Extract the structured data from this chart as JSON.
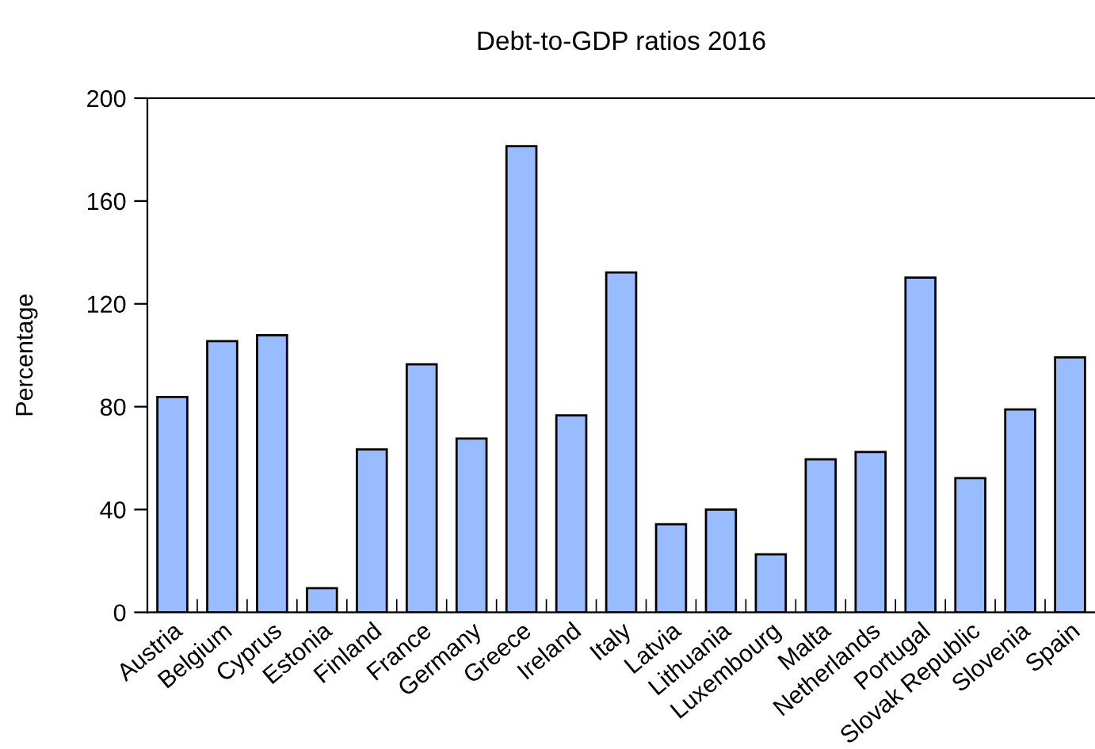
{
  "chart_data": {
    "type": "bar",
    "title": "Debt-to-GDP ratios 2016",
    "ylabel": "Percentage",
    "categories": [
      "Austria",
      "Belgium",
      "Cyprus",
      "Estonia",
      "Finland",
      "France",
      "Germany",
      "Greece",
      "Ireland",
      "Italy",
      "Latvia",
      "Lithuania",
      "Luxembourg",
      "Malta",
      "Netherlands",
      "Portugal",
      "Slovak Republic",
      "Slovenia",
      "Spain"
    ],
    "values": [
      83.8,
      105.5,
      107.8,
      9.4,
      63.4,
      96.5,
      67.6,
      181.3,
      76.6,
      132.2,
      34.3,
      40.0,
      22.6,
      59.5,
      62.4,
      130.2,
      52.2,
      78.9,
      99.2
    ],
    "color": "#99bbff",
    "ylim": [
      0,
      200
    ],
    "yticks": [
      0,
      40,
      80,
      120,
      160,
      200
    ],
    "grid": false,
    "legend": false
  }
}
